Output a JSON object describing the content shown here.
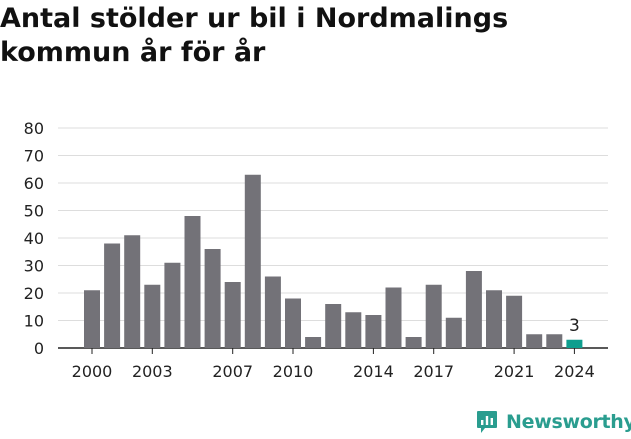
{
  "title": "Antal stölder ur bil i Nordmalings kommun år för år",
  "brand": {
    "name": "Newsworthy",
    "color": "#2a9d8f",
    "icon": "newsworthy-logo-icon"
  },
  "colors": {
    "bar": "#737278",
    "highlight": "#0e9e8e",
    "grid": "#dddddd",
    "axis": "#222222"
  },
  "chart_data": {
    "type": "bar",
    "title": "Antal stölder ur bil i Nordmalings kommun år för år",
    "xlabel": "",
    "ylabel": "",
    "categories": [
      "2000",
      "2001",
      "2002",
      "2003",
      "2004",
      "2005",
      "2006",
      "2007",
      "2008",
      "2009",
      "2010",
      "2011",
      "2012",
      "2013",
      "2014",
      "2015",
      "2016",
      "2017",
      "2018",
      "2019",
      "2020",
      "2021",
      "2022",
      "2023",
      "2024"
    ],
    "values": [
      21,
      38,
      41,
      23,
      31,
      48,
      36,
      24,
      63,
      26,
      18,
      4,
      16,
      13,
      12,
      22,
      4,
      23,
      11,
      28,
      21,
      19,
      5,
      5,
      3
    ],
    "ylim": [
      0,
      80
    ],
    "yticks": [
      "0",
      "10",
      "20",
      "30",
      "40",
      "50",
      "60",
      "70",
      "80"
    ],
    "xtick_labels": [
      "2000",
      "2003",
      "2007",
      "2010",
      "2014",
      "2017",
      "2021",
      "2024"
    ],
    "highlight_index": 24,
    "data_labels": [
      {
        "index": 24,
        "text": "3"
      }
    ],
    "grid": "horizontal"
  }
}
